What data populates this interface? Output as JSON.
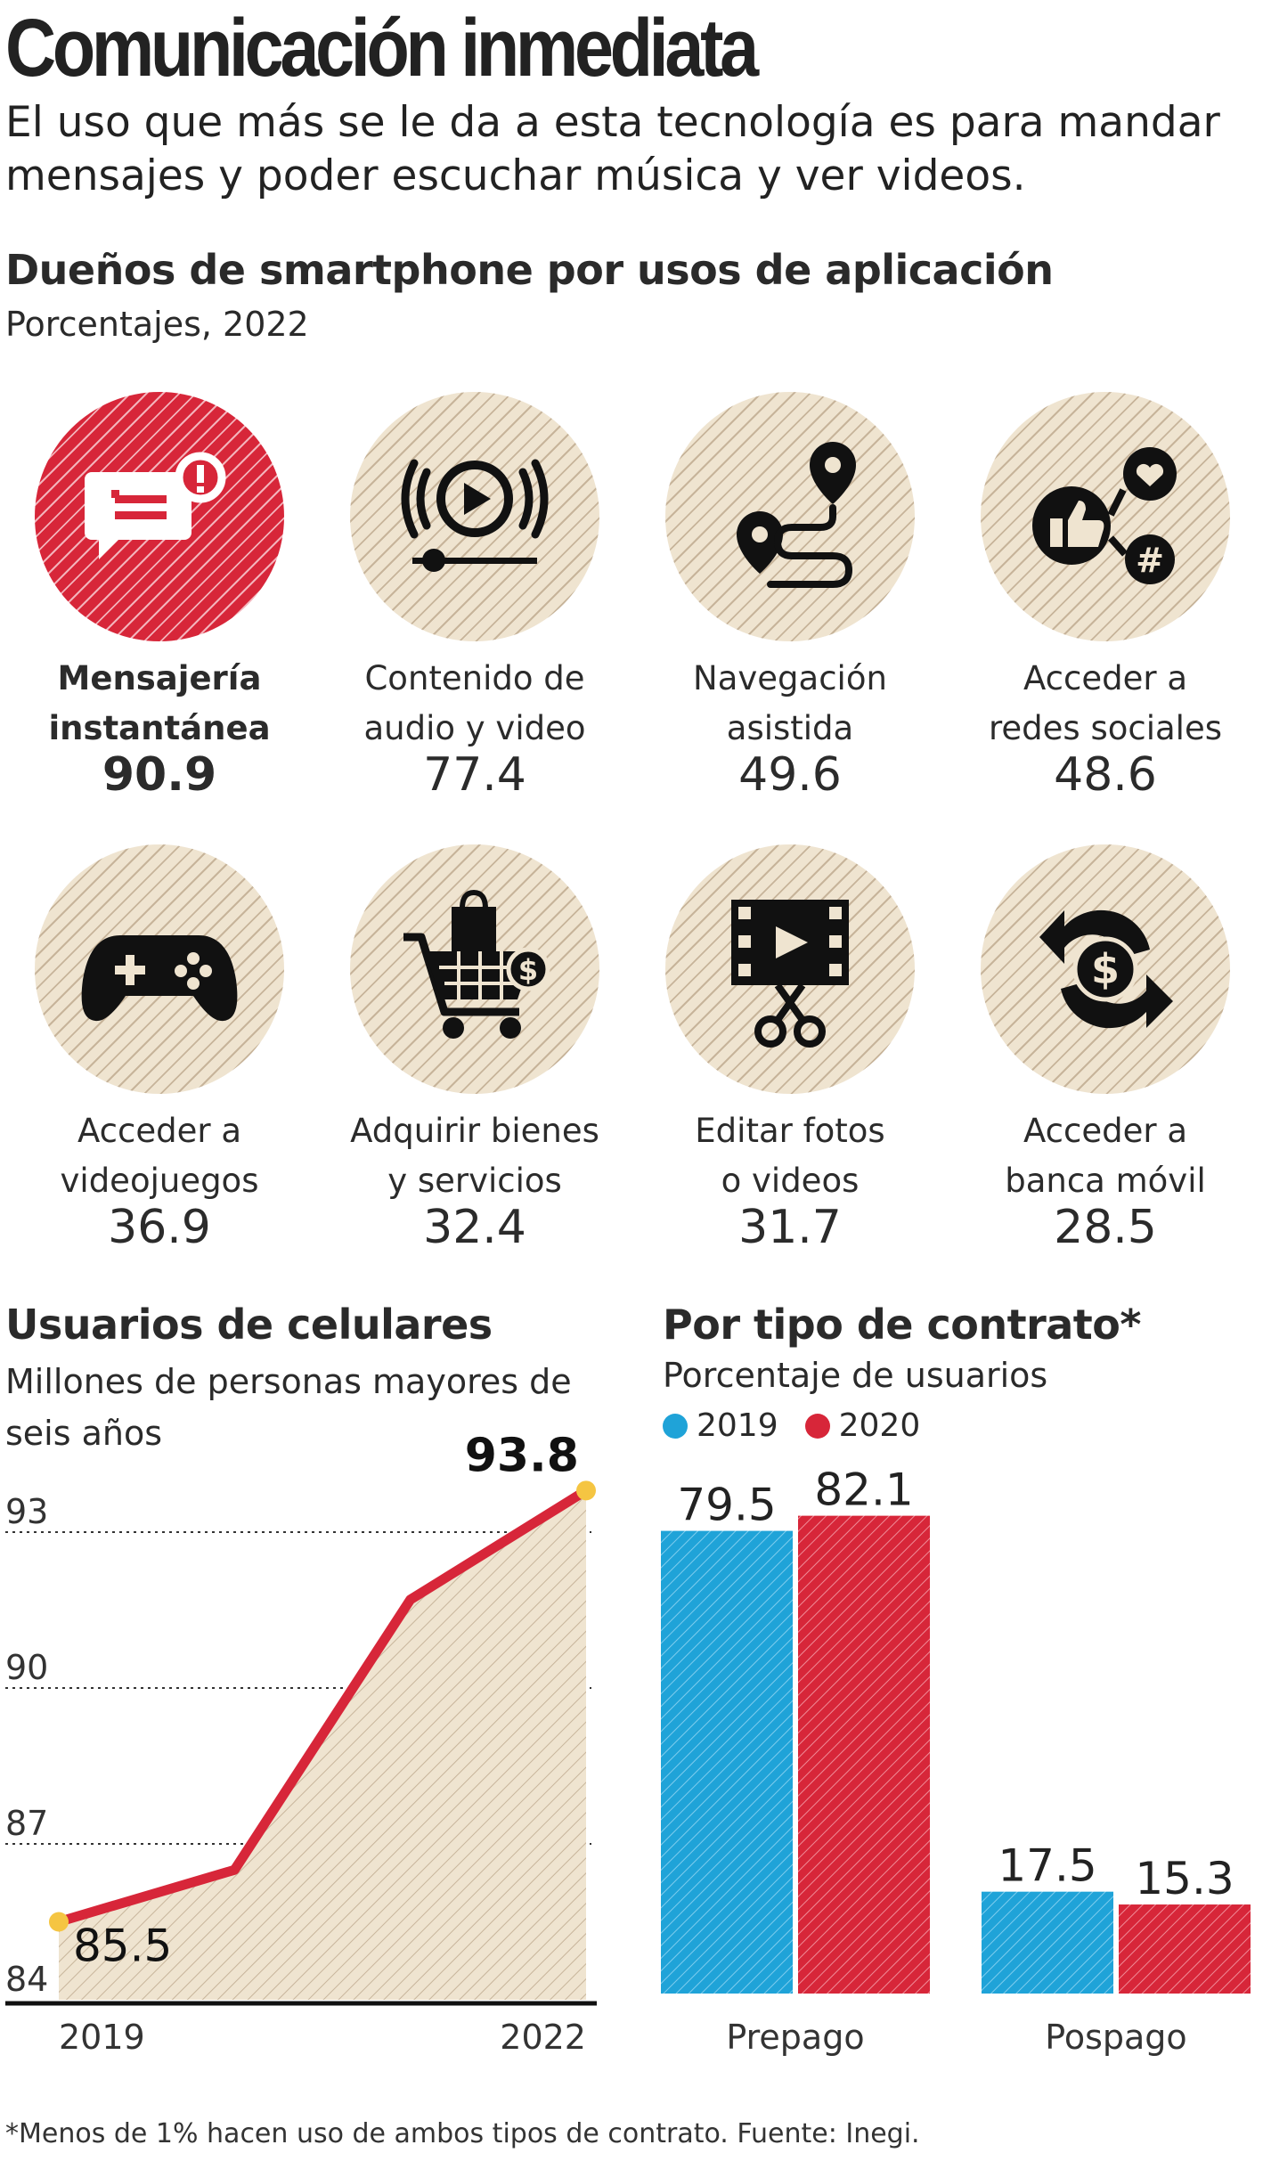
{
  "title": "Comunicación inmediata",
  "subtitle": "El uso que más se le da a esta tecnología es para mandar mensajes y poder escuchar música y ver videos.",
  "apps": {
    "title": "Dueños de smartphone por usos de aplicación",
    "subtitle": "Porcentajes, 2022",
    "items": [
      {
        "label": "Mensajería\ninstantánea",
        "value": "90.9",
        "icon": "message-icon",
        "highlight": true
      },
      {
        "label": "Contenido de\naudio y video",
        "value": "77.4",
        "icon": "play-media-icon",
        "highlight": false
      },
      {
        "label": "Navegación\nasistida",
        "value": "49.6",
        "icon": "map-route-icon",
        "highlight": false
      },
      {
        "label": "Acceder a\nredes sociales",
        "value": "48.6",
        "icon": "social-network-icon",
        "highlight": false
      },
      {
        "label": "Acceder a\nvideojuegos",
        "value": "36.9",
        "icon": "gamepad-icon",
        "highlight": false
      },
      {
        "label": "Adquirir bienes\ny servicios",
        "value": "32.4",
        "icon": "shopping-cart-icon",
        "highlight": false
      },
      {
        "label": "Editar fotos\no videos",
        "value": "31.7",
        "icon": "film-edit-icon",
        "highlight": false
      },
      {
        "label": "Acceder a\nbanca móvil",
        "value": "28.5",
        "icon": "mobile-banking-icon",
        "highlight": false
      }
    ]
  },
  "users": {
    "title": "Usuarios de celulares",
    "subtitle": "Millones de personas mayores de seis años"
  },
  "contract": {
    "title": "Por tipo de contrato*",
    "subtitle": "Porcentaje de usuarios"
  },
  "footnote": "*Menos de 1% hacen uso de ambos tipos de contrato. Fuente: Inegi.",
  "colors": {
    "red": "#d72639",
    "blue": "#1fa3d8",
    "beige": "#efe4d0"
  },
  "chart_data": [
    {
      "type": "area",
      "x": [
        "2019",
        "2020",
        "2021",
        "2022"
      ],
      "x_ticks": [
        "2019",
        "2022"
      ],
      "values": [
        85.5,
        86.5,
        91.7,
        93.8
      ],
      "value_labels": [
        "85.5",
        "",
        "",
        "93.8"
      ],
      "ylim": [
        84,
        94.2
      ],
      "yticks": [
        "84",
        "87",
        "90",
        "93"
      ],
      "series_color": "#d72639"
    },
    {
      "type": "bar",
      "categories": [
        "Prepago",
        "Pospago"
      ],
      "series": [
        {
          "name": "2019",
          "values": [
            79.5,
            17.5
          ],
          "labels": [
            "79.5",
            "17.5"
          ],
          "color": "#1fa3d8"
        },
        {
          "name": "2020",
          "values": [
            82.1,
            15.3
          ],
          "labels": [
            "82.1",
            "15.3"
          ],
          "color": "#d72639"
        }
      ],
      "ylim": [
        0,
        90
      ],
      "legend": "top-left"
    }
  ]
}
